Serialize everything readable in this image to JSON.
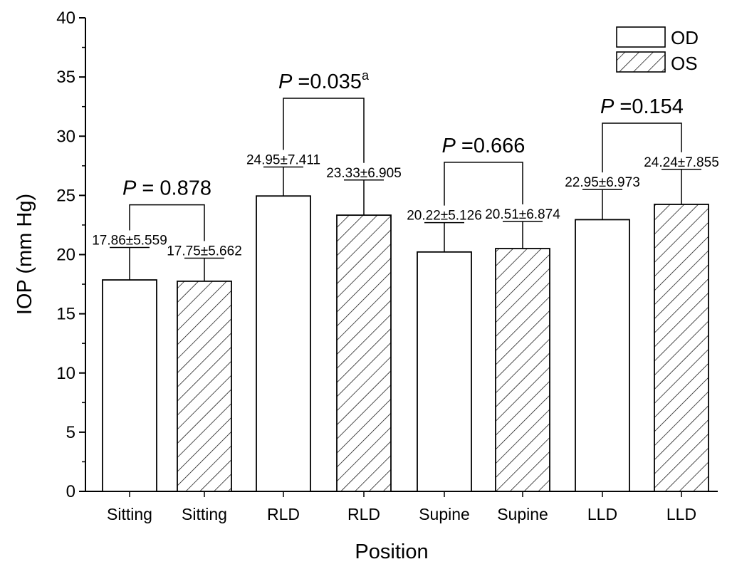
{
  "chart_data": {
    "type": "bar",
    "xlabel": "Position",
    "ylabel": "IOP (mm Hg)",
    "ylim": [
      0,
      40
    ],
    "yticks": [
      0,
      5,
      10,
      15,
      20,
      25,
      30,
      35,
      40
    ],
    "grid": false,
    "legend": {
      "placement": "top-right",
      "entries": [
        {
          "name": "OD",
          "pattern": "plain"
        },
        {
          "name": "OS",
          "pattern": "hatched"
        }
      ]
    },
    "categories": [
      "Sitting",
      "Sitting",
      "RLD",
      "RLD",
      "Supine",
      "Supine",
      "LLD",
      "LLD"
    ],
    "bars": [
      {
        "category": "Sitting",
        "series": "OD",
        "mean": 17.86,
        "sd": 5.559,
        "error_top": 20.6,
        "label": "17.86±5.559"
      },
      {
        "category": "Sitting",
        "series": "OS",
        "mean": 17.75,
        "sd": 5.662,
        "error_top": 19.7,
        "label": "17.75±5.662"
      },
      {
        "category": "RLD",
        "series": "OD",
        "mean": 24.95,
        "sd": 7.411,
        "error_top": 27.4,
        "label": "24.95±7.411"
      },
      {
        "category": "RLD",
        "series": "OS",
        "mean": 23.33,
        "sd": 6.905,
        "error_top": 26.3,
        "label": "23.33±6.905"
      },
      {
        "category": "Supine",
        "series": "OD",
        "mean": 20.22,
        "sd": 5.126,
        "error_top": 22.7,
        "label": "20.22±5.126"
      },
      {
        "category": "Supine",
        "series": "OS",
        "mean": 20.51,
        "sd": 6.874,
        "error_top": 22.8,
        "label": "20.51±6.874"
      },
      {
        "category": "LLD",
        "series": "OD",
        "mean": 22.95,
        "sd": 6.973,
        "error_top": 25.5,
        "label": "22.95±6.973"
      },
      {
        "category": "LLD",
        "series": "OS",
        "mean": 24.24,
        "sd": 7.855,
        "error_top": 27.2,
        "label": "24.24±7.855"
      }
    ],
    "comparisons": [
      {
        "pair": "Sitting",
        "prefix": "P",
        "text": " = 0.878",
        "sup": "",
        "bracket_top": 24.2
      },
      {
        "pair": "RLD",
        "prefix": "P",
        "text": " =0.035",
        "sup": "a",
        "bracket_top": 33.2
      },
      {
        "pair": "Supine",
        "prefix": "P",
        "text": " =0.666",
        "sup": "",
        "bracket_top": 27.8
      },
      {
        "pair": "LLD",
        "prefix": "P",
        "text": " =0.154",
        "sup": "",
        "bracket_top": 31.1
      }
    ]
  }
}
